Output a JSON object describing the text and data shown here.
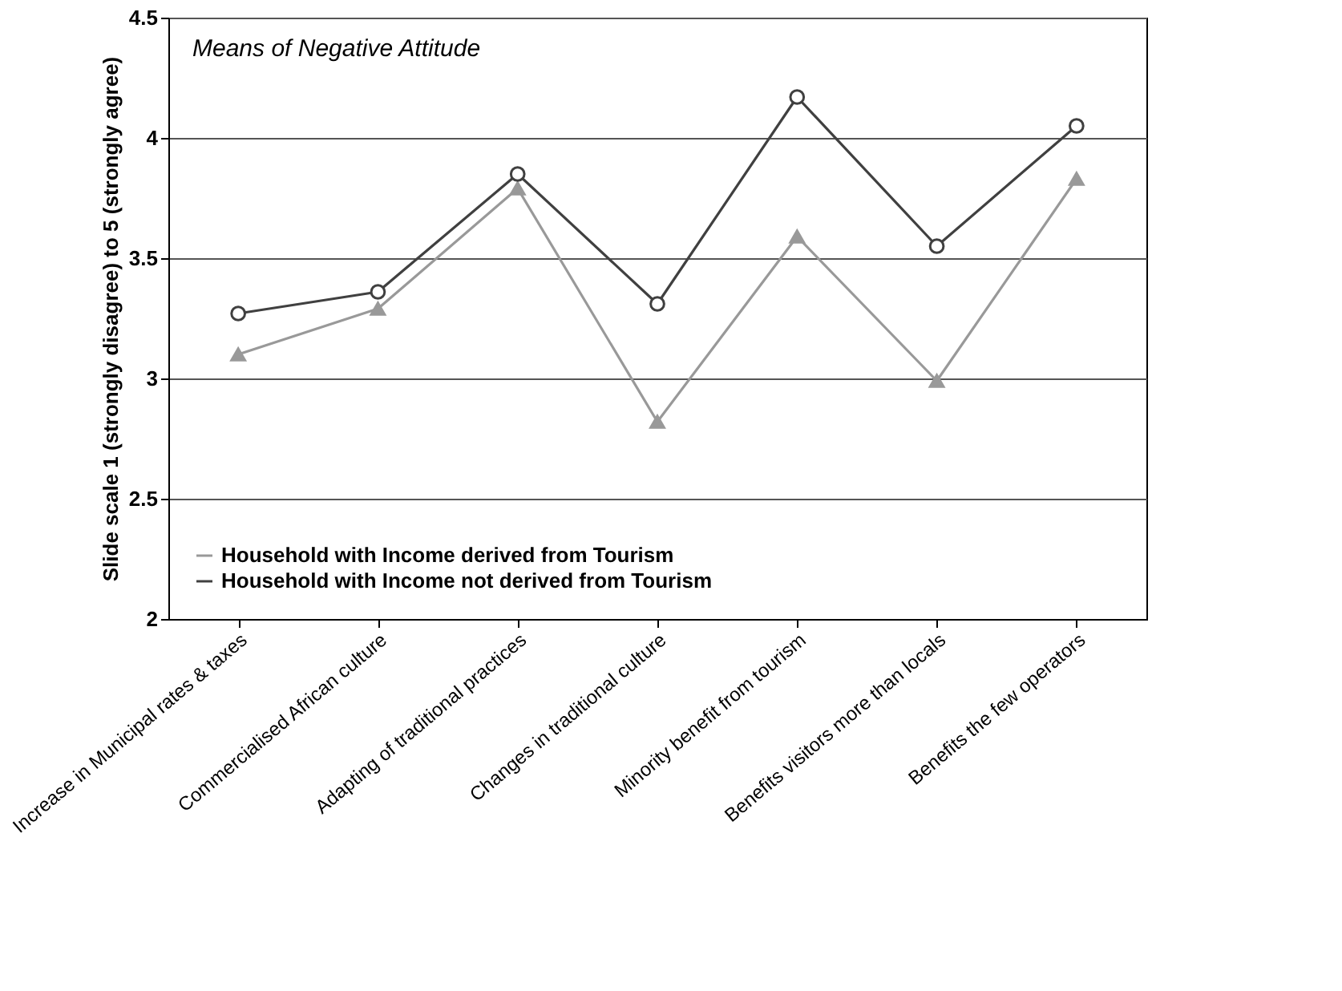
{
  "chart_data": {
    "type": "line",
    "title": "Means of Negative Attitude",
    "ylabel": "Slide scale 1  (strongly disagree) to 5 (strongly agree)",
    "categories": [
      "Increase in Municipal rates & taxes",
      "Commercialised African culture",
      "Adapting of traditional practices",
      "Changes in traditional culture",
      "Minority benefit from tourism",
      "Benefits visitors more than locals",
      "Benefits the few operators"
    ],
    "series": [
      {
        "name": "Household with Income derived from Tourism",
        "color": "#999999",
        "marker": "triangle",
        "values": [
          3.1,
          3.29,
          3.79,
          2.82,
          3.59,
          2.99,
          3.83
        ]
      },
      {
        "name": "Household with Income not derived from Tourism",
        "color": "#404040",
        "marker": "circle",
        "values": [
          3.27,
          3.36,
          3.85,
          3.31,
          4.17,
          3.55,
          4.05
        ]
      }
    ],
    "ylim": [
      2,
      4.5
    ],
    "yticks": [
      2,
      2.5,
      3,
      3.5,
      4,
      4.5
    ],
    "grid": "y",
    "legend": "bottom left",
    "line_style": "solid"
  }
}
